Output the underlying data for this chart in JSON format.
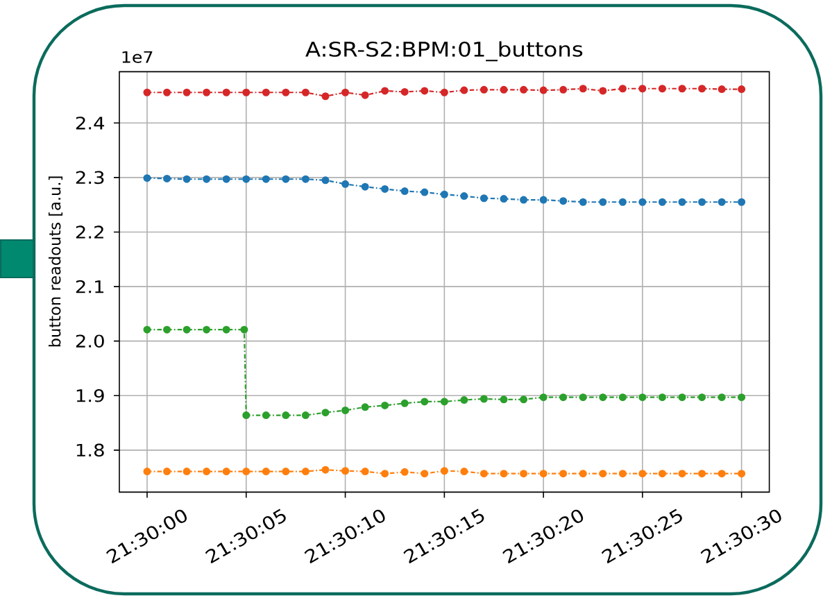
{
  "chart_data": {
    "type": "line",
    "title": "A:SR-S2:BPM:01_buttons",
    "ylabel": "button readouts [a.u.]",
    "annotations": [
      "1e7"
    ],
    "x": [
      21.5,
      21.500278,
      21.500556,
      21.500833,
      21.501111,
      21.501389,
      21.501667,
      21.501944,
      21.502222,
      21.5025,
      21.502778,
      21.503056,
      21.503333,
      21.503611,
      21.503889,
      21.504167,
      21.504444,
      21.504722,
      21.505,
      21.505278,
      21.505556,
      21.505833,
      21.506111,
      21.506389,
      21.506667,
      21.506944,
      21.507222,
      21.5075,
      21.507778,
      21.508056,
      21.508333
    ],
    "series": [
      {
        "color": "#1f77b4",
        "values": [
          2.299,
          2.298,
          2.297,
          2.297,
          2.297,
          2.297,
          2.297,
          2.297,
          2.297,
          2.295,
          2.288,
          2.283,
          2.279,
          2.275,
          2.273,
          2.269,
          2.266,
          2.262,
          2.261,
          2.259,
          2.259,
          2.257,
          2.255,
          2.255,
          2.255,
          2.255,
          2.255,
          2.255,
          2.255,
          2.255,
          2.255
        ]
      },
      {
        "color": "#ff7f0e",
        "values": [
          1.761,
          1.761,
          1.761,
          1.761,
          1.761,
          1.761,
          1.761,
          1.761,
          1.761,
          1.764,
          1.762,
          1.761,
          1.757,
          1.76,
          1.757,
          1.762,
          1.761,
          1.757,
          1.757,
          1.757,
          1.757,
          1.757,
          1.757,
          1.757,
          1.757,
          1.757,
          1.757,
          1.757,
          1.757,
          1.757,
          1.757
        ]
      },
      {
        "color": "#2ca02c",
        "x": [
          21.5,
          21.500278,
          21.500556,
          21.500833,
          21.501111,
          21.501361,
          21.501389,
          21.501667,
          21.501944,
          21.502222,
          21.5025,
          21.502778,
          21.503056,
          21.503333,
          21.503611,
          21.503889,
          21.504167,
          21.504444,
          21.504722,
          21.505,
          21.505278,
          21.505556,
          21.505833,
          21.506111,
          21.506389,
          21.506667,
          21.506944,
          21.507222,
          21.5075,
          21.507778,
          21.508056,
          21.508333
        ],
        "values": [
          2.021,
          2.021,
          2.021,
          2.021,
          2.021,
          2.021,
          1.864,
          1.864,
          1.864,
          1.864,
          1.869,
          1.873,
          1.879,
          1.882,
          1.886,
          1.889,
          1.889,
          1.892,
          1.894,
          1.893,
          1.893,
          1.897,
          1.897,
          1.897,
          1.897,
          1.897,
          1.897,
          1.897,
          1.897,
          1.897,
          1.897,
          1.897
        ]
      },
      {
        "color": "#d62728",
        "values": [
          2.456,
          2.456,
          2.456,
          2.456,
          2.456,
          2.456,
          2.456,
          2.456,
          2.456,
          2.449,
          2.456,
          2.451,
          2.459,
          2.457,
          2.459,
          2.456,
          2.46,
          2.461,
          2.461,
          2.461,
          2.46,
          2.461,
          2.463,
          2.459,
          2.463,
          2.463,
          2.463,
          2.463,
          2.463,
          2.462,
          2.462
        ]
      }
    ],
    "xlim": [
      21.499611,
      21.508722
    ],
    "xticks": [
      {
        "value": 21.5,
        "label": "21:30:00"
      },
      {
        "value": 21.501389,
        "label": "21:30:05"
      },
      {
        "value": 21.502778,
        "label": "21:30:10"
      },
      {
        "value": 21.504167,
        "label": "21:30:15"
      },
      {
        "value": 21.505556,
        "label": "21:30:20"
      },
      {
        "value": 21.506944,
        "label": "21:30:25"
      },
      {
        "value": 21.508333,
        "label": "21:30:30"
      }
    ],
    "ylim": [
      1.723,
      2.494
    ],
    "yticks": [
      1.8,
      1.9,
      {
        "value": 2.0,
        "label": "2.0"
      },
      2.1,
      2.2,
      2.3,
      2.4
    ],
    "grid": true,
    "marker": "circle",
    "line_style": "dashed"
  }
}
